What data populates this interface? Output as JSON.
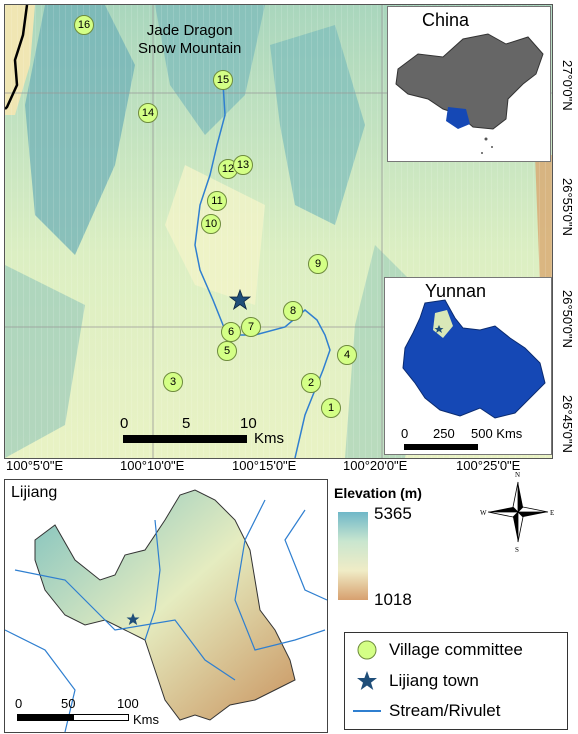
{
  "main_map": {
    "title_line1": "Jade Dragon",
    "title_line2": "Snow Mountain",
    "villages": [
      "1",
      "2",
      "3",
      "4",
      "5",
      "6",
      "7",
      "8",
      "9",
      "10",
      "11",
      "12",
      "13",
      "14",
      "15",
      "16"
    ],
    "scale": {
      "ticks": [
        "0",
        "5",
        "10"
      ],
      "unit": "Kms"
    },
    "x_ticks": [
      "100°5'0\"E",
      "100°10'0\"E",
      "100°15'0\"E",
      "100°20'0\"E",
      "100°25'0\"E"
    ],
    "y_ticks": [
      "27°0'0\"N",
      "26°55'0\"N",
      "26°50'0\"N",
      "26°45'0\"N"
    ]
  },
  "china_inset": {
    "title": "China"
  },
  "yunnan_inset": {
    "title": "Yunnan",
    "scale_ticks": [
      "0",
      "250",
      "500 Kms"
    ]
  },
  "lijiang_map": {
    "title": "Lijiang",
    "scale_ticks": [
      "0",
      "50",
      "100"
    ],
    "scale_unit": "Kms"
  },
  "elevation_legend": {
    "title": "Elevation (m)",
    "max": "5365",
    "min": "1018"
  },
  "compass": {
    "n": "N",
    "s": "S",
    "e": "E",
    "w": "W"
  },
  "legend": {
    "village": "Village committee",
    "town": "Lijiang town",
    "stream": "Stream/Rivulet"
  },
  "colors": {
    "village_fill": "#d4ff86",
    "town": "#1f4e79",
    "stream": "#2f7fd0",
    "yunnan_fill": "#1548b5"
  }
}
